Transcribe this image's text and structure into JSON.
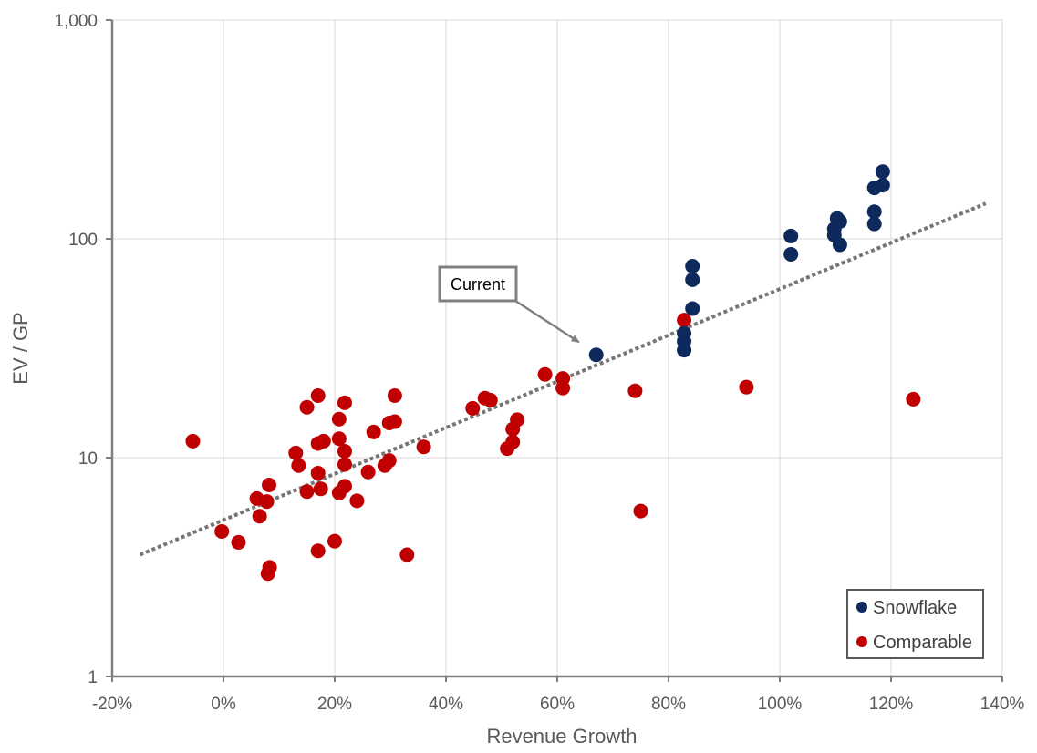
{
  "chart_data": {
    "type": "scatter",
    "xlabel": "Revenue Growth",
    "ylabel": "EV / GP",
    "x_scale": "linear",
    "y_scale": "log",
    "xlim": [
      -0.2,
      1.4
    ],
    "ylim": [
      1,
      1000
    ],
    "x_ticks": [
      -0.2,
      0,
      0.2,
      0.4,
      0.6,
      0.8,
      1.0,
      1.2,
      1.4
    ],
    "x_tick_labels": [
      "-20%",
      "0%",
      "20%",
      "40%",
      "60%",
      "80%",
      "100%",
      "120%",
      "140%"
    ],
    "y_ticks": [
      1,
      10,
      100,
      1000
    ],
    "y_tick_labels": [
      "1",
      "10",
      "100",
      "1,000"
    ],
    "grid": true,
    "legend_position": "bottom-right",
    "annotation": {
      "text": "Current",
      "target": [
        0.67,
        29.5
      ]
    },
    "trendline": {
      "style": "dotted",
      "color": "#767676",
      "x_range": [
        -0.15,
        1.37
      ],
      "start_y": 3.6,
      "end_y": 145
    },
    "series": [
      {
        "name": "Snowflake",
        "color": "#0E2A5C",
        "points": [
          [
            0.67,
            29.5
          ],
          [
            0.828,
            31
          ],
          [
            0.828,
            34
          ],
          [
            0.828,
            37
          ],
          [
            0.843,
            48
          ],
          [
            0.843,
            65
          ],
          [
            0.843,
            75
          ],
          [
            1.02,
            85
          ],
          [
            1.02,
            103
          ],
          [
            1.098,
            104
          ],
          [
            1.098,
            111
          ],
          [
            1.103,
            124
          ],
          [
            1.108,
            120
          ],
          [
            1.108,
            94
          ],
          [
            1.17,
            117
          ],
          [
            1.17,
            133
          ],
          [
            1.17,
            171
          ],
          [
            1.185,
            176
          ],
          [
            1.185,
            203
          ]
        ]
      },
      {
        "name": "Comparable",
        "color": "#C00000",
        "points": [
          [
            -0.055,
            11.9
          ],
          [
            -0.003,
            4.6
          ],
          [
            0.027,
            4.1
          ],
          [
            0.06,
            6.5
          ],
          [
            0.065,
            5.4
          ],
          [
            0.078,
            6.3
          ],
          [
            0.08,
            2.95
          ],
          [
            0.083,
            3.15
          ],
          [
            0.082,
            7.5
          ],
          [
            0.13,
            10.5
          ],
          [
            0.135,
            9.2
          ],
          [
            0.15,
            7.0
          ],
          [
            0.15,
            17.0
          ],
          [
            0.17,
            19.2
          ],
          [
            0.17,
            11.6
          ],
          [
            0.17,
            8.5
          ],
          [
            0.17,
            3.75
          ],
          [
            0.175,
            7.2
          ],
          [
            0.18,
            11.9
          ],
          [
            0.2,
            4.15
          ],
          [
            0.208,
            6.9
          ],
          [
            0.208,
            12.2
          ],
          [
            0.208,
            15.0
          ],
          [
            0.218,
            7.4
          ],
          [
            0.218,
            9.3
          ],
          [
            0.218,
            10.7
          ],
          [
            0.218,
            17.8
          ],
          [
            0.24,
            6.35
          ],
          [
            0.26,
            8.6
          ],
          [
            0.27,
            13.1
          ],
          [
            0.29,
            9.2
          ],
          [
            0.298,
            9.7
          ],
          [
            0.298,
            14.4
          ],
          [
            0.308,
            19.2
          ],
          [
            0.308,
            14.6
          ],
          [
            0.33,
            3.6
          ],
          [
            0.36,
            11.2
          ],
          [
            0.448,
            16.8
          ],
          [
            0.47,
            18.7
          ],
          [
            0.48,
            18.3
          ],
          [
            0.51,
            11.0
          ],
          [
            0.52,
            11.8
          ],
          [
            0.52,
            13.5
          ],
          [
            0.528,
            14.9
          ],
          [
            0.578,
            24.0
          ],
          [
            0.61,
            23.0
          ],
          [
            0.61,
            20.8
          ],
          [
            0.74,
            20.2
          ],
          [
            0.75,
            5.7
          ],
          [
            0.828,
            42.5
          ],
          [
            0.94,
            21.0
          ],
          [
            1.24,
            18.5
          ]
        ]
      }
    ]
  }
}
